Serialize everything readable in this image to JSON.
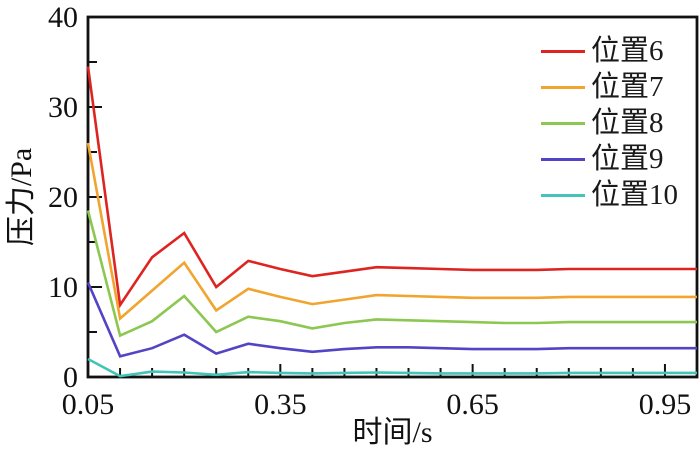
{
  "chart_data": {
    "type": "line",
    "title": "",
    "xlabel": "时间/s",
    "ylabel": "压力/Pa",
    "xlim": [
      0.05,
      1.0
    ],
    "ylim": [
      0,
      40
    ],
    "grid": false,
    "legend_position": "top-right",
    "x_major_ticks": [
      0.05,
      0.35,
      0.65,
      0.95
    ],
    "x_tick_labels": [
      "0.05",
      "0.35",
      "0.65",
      "0.95"
    ],
    "x_minor_step": 0.05,
    "y_major_ticks": [
      0,
      10,
      20,
      30,
      40
    ],
    "y_tick_labels": [
      "0",
      "10",
      "20",
      "30",
      "40"
    ],
    "y_minor_step": 5,
    "axis_color": "#111111",
    "x": [
      0.05,
      0.1,
      0.15,
      0.2,
      0.25,
      0.3,
      0.35,
      0.4,
      0.45,
      0.5,
      0.55,
      0.6,
      0.65,
      0.7,
      0.75,
      0.8,
      0.85,
      0.9,
      0.95,
      1.0
    ],
    "series": [
      {
        "name": "位置6",
        "color": "#dd2421",
        "values": [
          34.5,
          8.0,
          13.3,
          16.0,
          10.0,
          12.9,
          12.0,
          11.2,
          11.7,
          12.2,
          12.1,
          12.0,
          11.9,
          11.9,
          11.9,
          12.0,
          12.0,
          12.0,
          12.0,
          12.0
        ]
      },
      {
        "name": "位置7",
        "color": "#f1a42e",
        "values": [
          26.0,
          6.5,
          9.6,
          12.7,
          7.4,
          9.8,
          8.9,
          8.1,
          8.6,
          9.1,
          9.0,
          8.9,
          8.8,
          8.8,
          8.8,
          8.9,
          8.9,
          8.9,
          8.9,
          8.9
        ]
      },
      {
        "name": "位置8",
        "color": "#8cc751",
        "values": [
          18.5,
          4.6,
          6.2,
          9.0,
          5.0,
          6.7,
          6.2,
          5.4,
          6.0,
          6.4,
          6.3,
          6.2,
          6.1,
          6.0,
          6.0,
          6.1,
          6.1,
          6.1,
          6.1,
          6.1
        ]
      },
      {
        "name": "位置9",
        "color": "#5244c4",
        "values": [
          10.5,
          2.3,
          3.2,
          4.7,
          2.6,
          3.7,
          3.2,
          2.8,
          3.1,
          3.3,
          3.3,
          3.2,
          3.1,
          3.1,
          3.1,
          3.2,
          3.2,
          3.2,
          3.2,
          3.2
        ]
      },
      {
        "name": "位置10",
        "color": "#42c4b6",
        "values": [
          2.0,
          0.1,
          0.6,
          0.5,
          0.25,
          0.55,
          0.45,
          0.4,
          0.45,
          0.5,
          0.45,
          0.4,
          0.4,
          0.4,
          0.4,
          0.45,
          0.45,
          0.45,
          0.45,
          0.45
        ]
      }
    ]
  }
}
